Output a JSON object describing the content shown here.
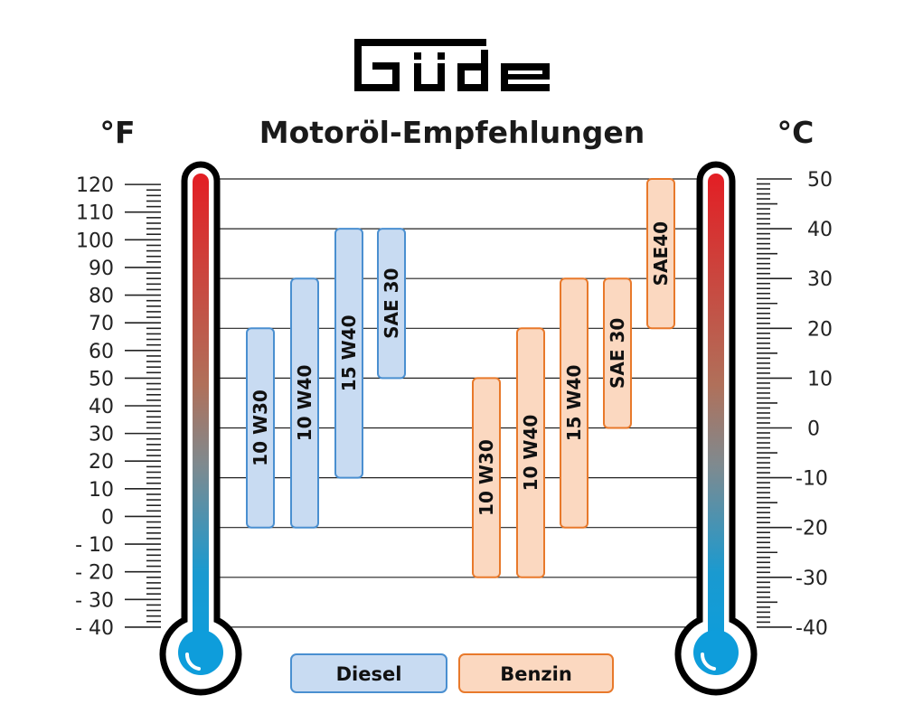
{
  "logo": "Güde",
  "chart_data": {
    "type": "bar",
    "orientation": "vertical-range",
    "title": "Motoröl-Empfehlungen",
    "left_axis": {
      "unit": "°F",
      "range": [
        -40,
        120
      ],
      "ticks": [
        120,
        110,
        100,
        90,
        80,
        70,
        60,
        50,
        40,
        30,
        20,
        10,
        0,
        -10,
        -20,
        -30,
        -40
      ],
      "tick_labels": [
        "120",
        "110",
        "100",
        "90",
        "80",
        "70",
        "60",
        "50",
        "40",
        "30",
        "20",
        "10",
        "0",
        "- 10",
        "- 20",
        "- 30",
        "- 40"
      ]
    },
    "right_axis": {
      "unit": "°C",
      "range": [
        -40,
        50
      ],
      "ticks": [
        50,
        40,
        30,
        20,
        10,
        0,
        -10,
        -20,
        -30,
        -40
      ],
      "tick_labels": [
        "50",
        "40",
        "30",
        "20",
        "10",
        "0",
        "-10",
        "-20",
        "-30",
        "-40"
      ]
    },
    "grid": true,
    "legend_placement": "bottom",
    "series": [
      {
        "name": "Diesel",
        "color": "#c8dbf2",
        "stroke": "#4a8fd0",
        "bars": [
          {
            "label": "10 W30",
            "min_c": -20,
            "max_c": 20
          },
          {
            "label": "10 W40",
            "min_c": -20,
            "max_c": 30
          },
          {
            "label": "15 W40",
            "min_c": -10,
            "max_c": 40
          },
          {
            "label": "SAE 30",
            "min_c": 10,
            "max_c": 40
          }
        ]
      },
      {
        "name": "Benzin",
        "color": "#fbd8c0",
        "stroke": "#e8792b",
        "bars": [
          {
            "label": "10 W30",
            "min_c": -30,
            "max_c": 10
          },
          {
            "label": "10 W40",
            "min_c": -30,
            "max_c": 20
          },
          {
            "label": "15 W40",
            "min_c": -20,
            "max_c": 30
          },
          {
            "label": "SAE 30",
            "min_c": 0,
            "max_c": 30
          },
          {
            "label": "SAE40",
            "min_c": 20,
            "max_c": 50
          }
        ]
      }
    ]
  }
}
